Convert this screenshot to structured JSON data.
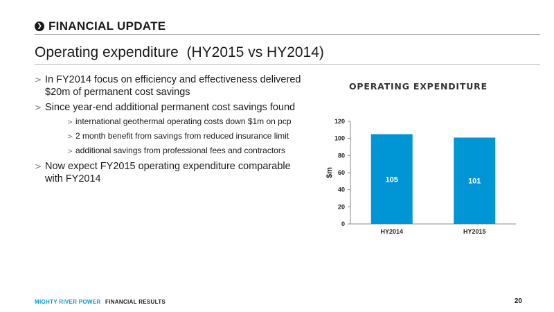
{
  "header": {
    "icon": "chevron-right-icon",
    "title": "FINANCIAL UPDATE"
  },
  "page_title": "Operating expenditure  (HY2015 vs HY2014)",
  "bullets": [
    {
      "text": "In FY2014 focus on efficiency and effectiveness delivered $20m of permanent cost savings"
    },
    {
      "text": "Since year-end additional permanent cost savings found",
      "sub": [
        "international geothermal operating costs down $1m on pcp",
        "2 month benefit from savings from reduced insurance limit",
        "additional savings from professional fees and contractors"
      ]
    },
    {
      "text": "Now expect FY2015 operating expenditure comparable with FY2014"
    }
  ],
  "bullet_marker": ">",
  "chart_data": {
    "type": "bar",
    "title": "OPERATING EXPENDITURE",
    "categories": [
      "HY2014",
      "HY2015"
    ],
    "values": [
      105,
      101
    ],
    "ylabel": "$m",
    "xlabel": "",
    "ylim": [
      0,
      120
    ],
    "yticks": [
      0,
      20,
      40,
      60,
      80,
      100,
      120
    ],
    "bar_color": "#0096d6",
    "label_color": "#ffffff",
    "grid": false,
    "legend": "none"
  },
  "footer": {
    "brand": "MIGHTY RIVER POWER",
    "section": "FINANCIAL RESULTS",
    "page": "20"
  }
}
